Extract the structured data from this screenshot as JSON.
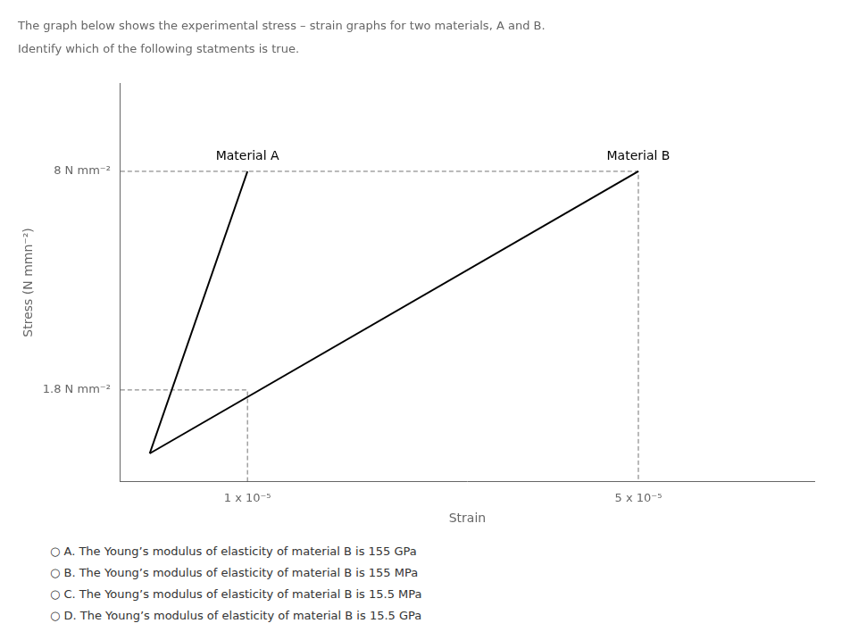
{
  "chart_data": {
    "type": "line",
    "title": "The graph below shows the experimental stress – strain graphs for two materials, A and B.",
    "subtitle": "Identify which of the following statments is true.",
    "x_label": "Strain",
    "y_label": "Stress (N mmn⁻²)",
    "series": [
      {
        "name": "Material A",
        "color": "#000000",
        "x": [
          0,
          1e-05
        ],
        "values": [
          0,
          8
        ]
      },
      {
        "name": "Material B",
        "color": "#000000",
        "x": [
          0,
          5e-05
        ],
        "values": [
          0,
          8
        ]
      }
    ],
    "xlim": [
      -3e-06,
      6.8e-05
    ],
    "xticks": [
      {
        "value": 1e-05,
        "label": "1 x 10⁻⁵"
      },
      {
        "value": 5e-05,
        "label": "5 x 10⁻⁵"
      }
    ],
    "ylim": [
      -0.8,
      10.5
    ],
    "yticks": [
      {
        "value": 1.8,
        "label": "1.8 N mm⁻²"
      },
      {
        "value": 8,
        "label": "8 N mm⁻²"
      }
    ],
    "grid": false,
    "annotations": [
      "○ A. The Young’s modulus of elasticity of material B is 155 GPa",
      "○ B. The Young’s modulus of elasticity of material B is 155 MPa",
      "○ C. The Young’s modulus of elasticity of material B is 15.5 MPa",
      "○ D. The Young’s modulus of elasticity of material B is 15.5 GPa"
    ]
  }
}
